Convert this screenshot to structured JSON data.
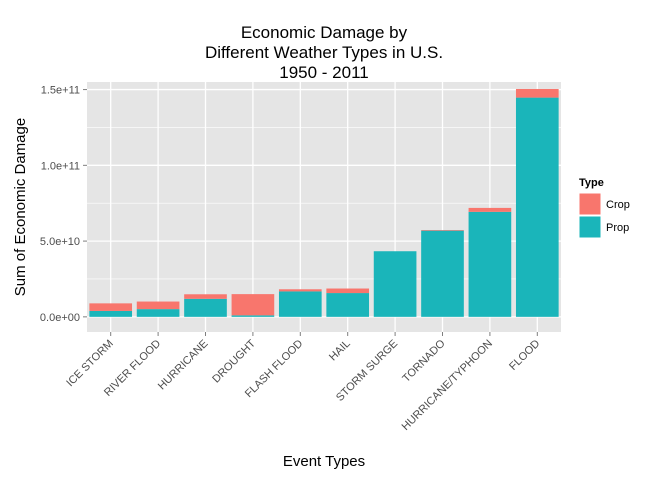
{
  "chart_data": {
    "type": "bar",
    "stacked": true,
    "title_lines": [
      "Economic Damage by",
      "Different Weather Types in U.S.",
      "1950 - 2011"
    ],
    "xlabel": "Event Types",
    "ylabel": "Sum of Economic Damage",
    "categories": [
      "ICE STORM",
      "RIVER FLOOD",
      "HURRICANE",
      "DROUGHT",
      "FLASH FLOOD",
      "HAIL",
      "STORM SURGE",
      "TORNADO",
      "HURRICANE/TYPHOON",
      "FLOOD"
    ],
    "series": [
      {
        "name": "Prop",
        "color": "#1ab5ba",
        "values": [
          3900000000.0,
          5100000000.0,
          11900000000.0,
          1000000000.0,
          16800000000.0,
          15700000000.0,
          43300000000.0,
          56900000000.0,
          69300000000.0,
          144700000000.0
        ]
      },
      {
        "name": "Crop",
        "color": "#f8766d",
        "values": [
          5000000000.0,
          5000000000.0,
          3000000000.0,
          14000000000.0,
          1400000000.0,
          3000000000.0,
          0.0,
          400000000.0,
          2600000000.0,
          5700000000.0
        ]
      }
    ],
    "stack_order": [
      "Prop",
      "Crop"
    ],
    "ylim": [
      -10000000000.0,
      155000000000.0
    ],
    "yticks": [
      0,
      50000000000.0,
      100000000000.0,
      150000000000.0
    ],
    "ytick_labels": [
      "0.0e+00",
      "5.0e+10",
      "1.0e+11",
      "1.5e+11"
    ],
    "legend": {
      "title": "Type",
      "position": "right",
      "entries": [
        {
          "name": "Crop",
          "color": "#f8766d"
        },
        {
          "name": "Prop",
          "color": "#1ab5ba"
        }
      ]
    },
    "grid": true,
    "panel_background": "#e5e5e5",
    "grid_color": "#ffffff"
  }
}
